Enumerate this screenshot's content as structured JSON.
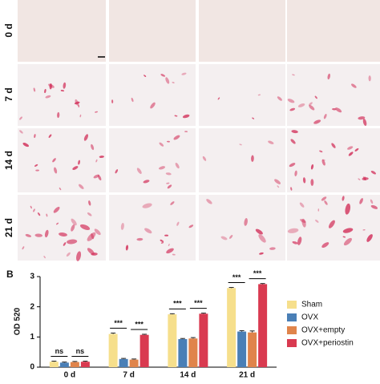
{
  "panel_a": {
    "row_labels": [
      "0 d",
      "7 d",
      "14 d",
      "21 d"
    ]
  },
  "panel_b_label": "B",
  "chart_data": {
    "type": "bar",
    "ylabel": "OD 520",
    "categories": [
      "0 d",
      "7 d",
      "14 d",
      "21 d"
    ],
    "series": [
      {
        "name": "Sham",
        "color": "#f6df8c",
        "values": [
          0.18,
          1.1,
          1.75,
          2.62
        ],
        "errors": [
          0.02,
          0.03,
          0.02,
          0.02
        ]
      },
      {
        "name": "OVX",
        "color": "#4a7fb6",
        "values": [
          0.15,
          0.27,
          0.93,
          1.18
        ],
        "errors": [
          0.02,
          0.02,
          0.02,
          0.03
        ]
      },
      {
        "name": "OVX+empty",
        "color": "#e0844b",
        "values": [
          0.17,
          0.25,
          0.95,
          1.15
        ],
        "errors": [
          0.02,
          0.02,
          0.03,
          0.05
        ]
      },
      {
        "name": "OVX+periostin",
        "color": "#d93a50",
        "values": [
          0.18,
          1.07,
          1.77,
          2.75
        ],
        "errors": [
          0.02,
          0.02,
          0.02,
          0.02
        ]
      }
    ],
    "annotations": [
      [
        "ns",
        "ns"
      ],
      [
        "***",
        "***"
      ],
      [
        "***",
        "***"
      ],
      [
        "***",
        "***"
      ]
    ],
    "ylim": [
      0,
      3
    ],
    "yticks": [
      0,
      1,
      2,
      3
    ],
    "grid": false
  }
}
